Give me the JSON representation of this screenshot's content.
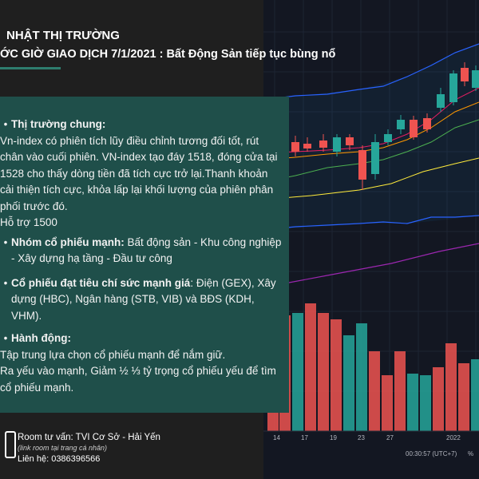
{
  "header": {
    "title": "NHẬT THỊ TRƯỜNG",
    "subtitle": "ỚC GIỜ GIAO DỊCH 7/1/2021 : Bất Động Sản tiếp tục bùng nổ"
  },
  "content": {
    "b1_title": "Thị trường chung:",
    "b1_text": " Vn-index có phiên tích lũy điều chỉnh tương đối tốt, rút chân vào cuối phiên. VN-index tạo đáy 1518, đóng cửa tại 1528 cho thấy dòng tiền đã tích cực trở lại.Thanh khoản cải thiện tích cực, khỏa lấp lại khối lượng của phiên phân phối trước đó.",
    "support": "Hỗ trợ 1500",
    "b2_title": "Nhóm cổ phiếu mạnh:",
    "b2_text": " Bất động sản - Khu công nghiệp - Xây dựng hạ tầng - Đầu tư công",
    "b3_title": "Cổ phiếu đạt tiêu chí sức mạnh giá",
    "b3_text": ": Điện (GEX), Xây dựng (HBC), Ngân hàng (STB, VIB) và BĐS (KDH, VHM).",
    "b4_title": "Hành động:",
    "b4_line1": "Tập trung lựa chọn cổ phiếu mạnh để nắm giữ.",
    "b4_line2": " Ra yếu vào mạnh, Giảm ½ ⅓ tỷ trọng cổ phiếu yếu để tìm cổ phiếu mạnh."
  },
  "footer": {
    "room": "Room tư vấn: TVI Cơ Sở - Hải Yến",
    "note": "(link room tại trang cá nhân)",
    "contact": "Liên hệ: 0386396566"
  },
  "chart": {
    "x_labels": [
      "14",
      "17",
      "19",
      "23",
      "27",
      "2022"
    ],
    "time_info": "00:30:57 (UTC+7)",
    "percent_label": "%",
    "up_color": "#26a69a",
    "down_color": "#ef5350"
  }
}
